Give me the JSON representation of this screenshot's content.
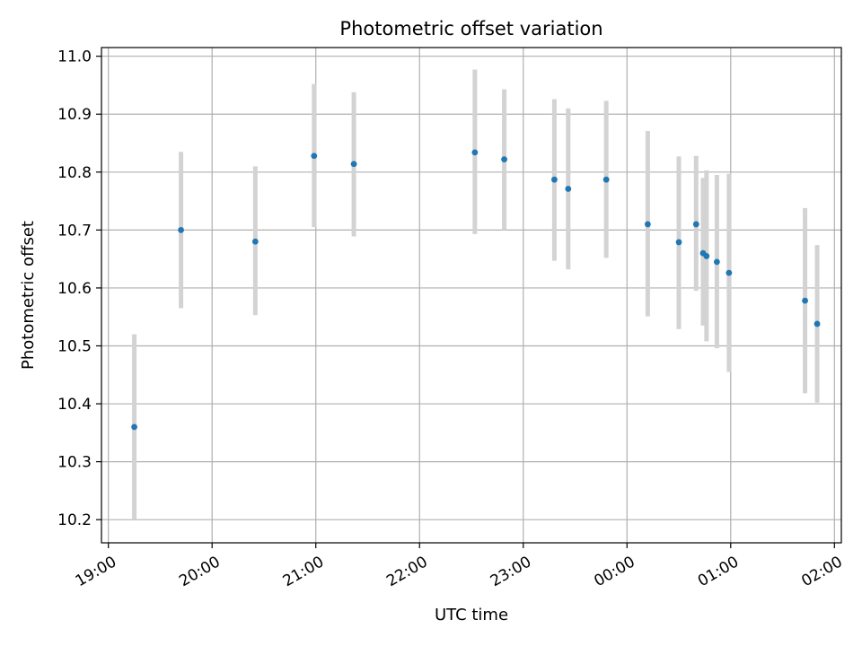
{
  "chart_data": {
    "type": "scatter",
    "title": "Photometric offset variation",
    "xlabel": "UTC time",
    "ylabel": "Photometric offset",
    "x_unit": "time of day (UTC), ticks wrap past midnight",
    "xlim": [
      "18:56",
      "02:04"
    ],
    "ylim": [
      10.16,
      11.015
    ],
    "grid": true,
    "x_tick_labels": [
      "19:00",
      "20:00",
      "21:00",
      "22:00",
      "23:00",
      "00:00",
      "01:00",
      "02:00"
    ],
    "y_tick_labels": [
      "10.2",
      "10.3",
      "10.4",
      "10.5",
      "10.6",
      "10.7",
      "10.8",
      "10.9",
      "11.0"
    ],
    "colors": {
      "marker": "#1f77b4",
      "errorbar": "#d3d3d3",
      "grid": "#b0b0b0"
    },
    "series": [
      {
        "points": [
          {
            "x": "19:15",
            "y": 10.36,
            "lo": 10.2,
            "hi": 10.52
          },
          {
            "x": "19:42",
            "y": 10.7,
            "lo": 10.565,
            "hi": 10.835
          },
          {
            "x": "20:25",
            "y": 10.68,
            "lo": 10.553,
            "hi": 10.81
          },
          {
            "x": "20:59",
            "y": 10.828,
            "lo": 10.705,
            "hi": 10.952
          },
          {
            "x": "21:22",
            "y": 10.814,
            "lo": 10.689,
            "hi": 10.938
          },
          {
            "x": "22:32",
            "y": 10.834,
            "lo": 10.693,
            "hi": 10.977
          },
          {
            "x": "22:49",
            "y": 10.822,
            "lo": 10.7,
            "hi": 10.943
          },
          {
            "x": "23:18",
            "y": 10.787,
            "lo": 10.647,
            "hi": 10.926
          },
          {
            "x": "23:26",
            "y": 10.771,
            "lo": 10.632,
            "hi": 10.91
          },
          {
            "x": "23:48",
            "y": 10.787,
            "lo": 10.652,
            "hi": 10.923
          },
          {
            "x": "00:12",
            "y": 10.71,
            "lo": 10.551,
            "hi": 10.871
          },
          {
            "x": "00:30",
            "y": 10.679,
            "lo": 10.529,
            "hi": 10.827
          },
          {
            "x": "00:40",
            "y": 10.71,
            "lo": 10.595,
            "hi": 10.828
          },
          {
            "x": "00:44",
            "y": 10.66,
            "lo": 10.535,
            "hi": 10.79
          },
          {
            "x": "00:46",
            "y": 10.655,
            "lo": 10.508,
            "hi": 10.803
          },
          {
            "x": "00:52",
            "y": 10.645,
            "lo": 10.496,
            "hi": 10.795
          },
          {
            "x": "00:59",
            "y": 10.626,
            "lo": 10.455,
            "hi": 10.797
          },
          {
            "x": "01:43",
            "y": 10.578,
            "lo": 10.418,
            "hi": 10.738
          },
          {
            "x": "01:50",
            "y": 10.538,
            "lo": 10.402,
            "hi": 10.674
          }
        ]
      }
    ]
  }
}
